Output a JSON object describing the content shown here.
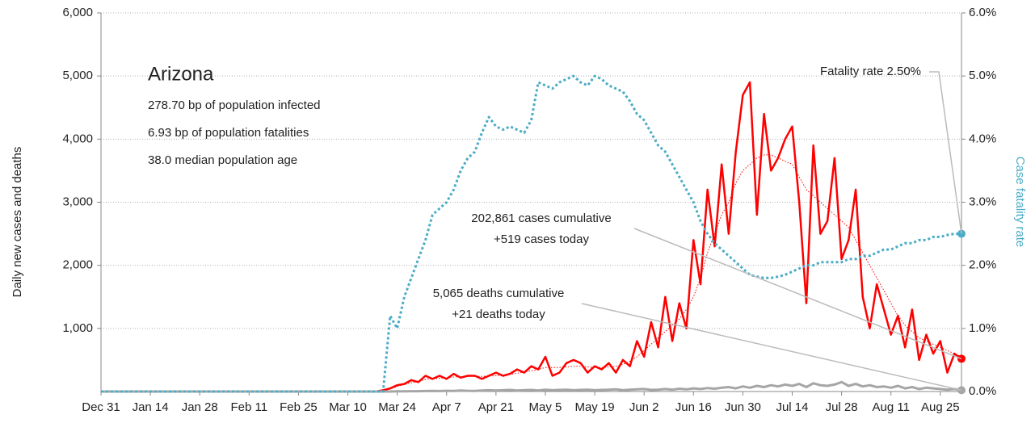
{
  "chart_data": {
    "type": "line",
    "y_label": "Daily new cases and deaths",
    "y2_label": "Case fatality rate",
    "info_title": "Arizona",
    "info_lines": [
      "278.70 bp of population infected",
      "6.93 bp of population fatalities",
      "38.0 median population age"
    ],
    "callouts": [
      [
        "Fatality rate 2.50%"
      ],
      [
        "202,861 cases cumulative",
        "+519 cases today"
      ],
      [
        "5,065 deaths cumulative",
        "+21 deaths today"
      ]
    ],
    "categories": [
      "Dec 31",
      null,
      null,
      null,
      null,
      null,
      null,
      "Jan 14",
      null,
      null,
      null,
      null,
      null,
      null,
      "Jan 28",
      null,
      null,
      null,
      null,
      null,
      null,
      "Feb 11",
      null,
      null,
      null,
      null,
      null,
      null,
      "Feb 25",
      null,
      null,
      null,
      null,
      null,
      null,
      "Mar 10",
      null,
      null,
      null,
      null,
      null,
      null,
      "Mar 24",
      null,
      null,
      null,
      null,
      null,
      null,
      "Apr 7",
      null,
      null,
      null,
      null,
      null,
      null,
      "Apr 21",
      null,
      null,
      null,
      null,
      null,
      null,
      "May 5",
      null,
      null,
      null,
      null,
      null,
      null,
      "May 19",
      null,
      null,
      null,
      null,
      null,
      null,
      "Jun 2",
      null,
      null,
      null,
      null,
      null,
      null,
      "Jun 16",
      null,
      null,
      null,
      null,
      null,
      null,
      "Jun 30",
      null,
      null,
      null,
      null,
      null,
      null,
      "Jul 14",
      null,
      null,
      null,
      null,
      null,
      null,
      "Jul 28",
      null,
      null,
      null,
      null,
      null,
      null,
      "Aug 11",
      null,
      null,
      null,
      null,
      null,
      null,
      "Aug 25",
      null,
      null,
      null
    ],
    "series": [
      {
        "color": "#ff0000",
        "style": "solid",
        "width": 2.5,
        "end_marker": true,
        "values": [
          0,
          0,
          0,
          0,
          0,
          0,
          0,
          0,
          0,
          0,
          0,
          0,
          0,
          0,
          0,
          0,
          0,
          0,
          0,
          0,
          0,
          0,
          0,
          0,
          0,
          0,
          0,
          0,
          0,
          0,
          0,
          0,
          0,
          0,
          0,
          0,
          0,
          0,
          0,
          0,
          20,
          50,
          100,
          120,
          180,
          150,
          250,
          200,
          250,
          200,
          280,
          220,
          250,
          250,
          200,
          250,
          300,
          250,
          280,
          350,
          300,
          400,
          350,
          550,
          250,
          300,
          450,
          500,
          450,
          300,
          400,
          350,
          450,
          300,
          500,
          400,
          800,
          550,
          1100,
          700,
          1500,
          800,
          1400,
          1000,
          2400,
          1700,
          3200,
          2300,
          3600,
          2500,
          3800,
          4700,
          4900,
          2800,
          4400,
          3500,
          3700,
          4000,
          4200,
          3000,
          1400,
          3900,
          2500,
          2700,
          3700,
          2100,
          2400,
          3200,
          1500,
          1000,
          1700,
          1300,
          900,
          1200,
          700,
          1300,
          500,
          900,
          600,
          800,
          300,
          600,
          519
        ]
      },
      {
        "color": "#ff0000",
        "style": "dotted",
        "width": 1,
        "end_marker": false,
        "values": [
          0,
          0,
          0,
          0,
          0,
          0,
          0,
          0,
          0,
          0,
          0,
          0,
          0,
          0,
          0,
          0,
          0,
          0,
          0,
          0,
          0,
          0,
          0,
          0,
          0,
          0,
          0,
          0,
          0,
          0,
          0,
          0,
          0,
          0,
          0,
          0,
          0,
          0,
          0,
          0,
          10,
          40,
          80,
          110,
          140,
          160,
          190,
          200,
          210,
          220,
          230,
          235,
          240,
          240,
          240,
          245,
          250,
          260,
          270,
          290,
          310,
          330,
          350,
          380,
          380,
          380,
          390,
          400,
          400,
          390,
          380,
          380,
          390,
          400,
          430,
          480,
          550,
          650,
          750,
          850,
          950,
          1050,
          1150,
          1300,
          1500,
          1800,
          2200,
          2500,
          2800,
          3000,
          3300,
          3500,
          3600,
          3700,
          3750,
          3750,
          3700,
          3650,
          3600,
          3400,
          3200,
          3100,
          3000,
          2900,
          2800,
          2700,
          2600,
          2400,
          2200,
          2000,
          1800,
          1600,
          1400,
          1200,
          1050,
          950,
          850,
          800,
          750,
          700,
          650,
          600,
          550
        ]
      },
      {
        "color": "#a6a6a6",
        "style": "solid",
        "width": 3,
        "end_marker": true,
        "values": [
          0,
          0,
          0,
          0,
          0,
          0,
          0,
          0,
          0,
          0,
          0,
          0,
          0,
          0,
          0,
          0,
          0,
          0,
          0,
          0,
          0,
          0,
          0,
          0,
          0,
          0,
          0,
          0,
          0,
          0,
          0,
          0,
          0,
          0,
          0,
          0,
          0,
          0,
          0,
          0,
          0,
          0,
          2,
          3,
          5,
          5,
          8,
          10,
          8,
          12,
          10,
          15,
          12,
          10,
          15,
          20,
          15,
          20,
          25,
          15,
          20,
          25,
          15,
          30,
          20,
          25,
          30,
          20,
          25,
          30,
          20,
          25,
          30,
          35,
          20,
          30,
          35,
          40,
          25,
          30,
          40,
          30,
          45,
          35,
          50,
          40,
          55,
          45,
          60,
          70,
          50,
          80,
          60,
          90,
          70,
          100,
          80,
          110,
          90,
          120,
          70,
          130,
          100,
          90,
          110,
          150,
          90,
          120,
          80,
          100,
          70,
          80,
          60,
          90,
          50,
          70,
          40,
          60,
          50,
          40,
          30,
          40,
          21
        ]
      },
      {
        "color": "#4bacc6",
        "style": "dotted",
        "width": 3,
        "end_marker": true,
        "axis": "y2",
        "values": [
          0,
          0,
          0,
          0,
          0,
          0,
          0,
          0,
          0,
          0,
          0,
          0,
          0,
          0,
          0,
          0,
          0,
          0,
          0,
          0,
          0,
          0,
          0,
          0,
          0,
          0,
          0,
          0,
          0,
          0,
          0,
          0,
          0,
          0,
          0,
          0,
          0,
          0,
          0,
          0,
          0,
          1.2,
          1.0,
          1.5,
          1.8,
          2.1,
          2.4,
          2.8,
          2.9,
          3.0,
          3.2,
          3.5,
          3.7,
          3.8,
          4.1,
          4.35,
          4.2,
          4.15,
          4.2,
          4.15,
          4.1,
          4.3,
          4.9,
          4.85,
          4.8,
          4.9,
          4.95,
          5.0,
          4.9,
          4.85,
          5.0,
          4.95,
          4.85,
          4.8,
          4.75,
          4.6,
          4.4,
          4.3,
          4.1,
          3.9,
          3.8,
          3.6,
          3.4,
          3.2,
          3.0,
          2.7,
          2.5,
          2.35,
          2.25,
          2.15,
          2.05,
          1.95,
          1.85,
          1.82,
          1.8,
          1.8,
          1.82,
          1.85,
          1.9,
          1.95,
          2.0,
          2.0,
          2.05,
          2.05,
          2.05,
          2.05,
          2.1,
          2.1,
          2.15,
          2.15,
          2.2,
          2.25,
          2.25,
          2.3,
          2.35,
          2.35,
          2.4,
          2.4,
          2.45,
          2.45,
          2.48,
          2.5,
          2.5
        ]
      }
    ],
    "ylim": [
      0,
      6000
    ],
    "yticks": [
      {
        "value": 1000,
        "label": "1,000"
      },
      {
        "value": 2000,
        "label": "2,000"
      },
      {
        "value": 3000,
        "label": "3,000"
      },
      {
        "value": 4000,
        "label": "4,000"
      },
      {
        "value": 5000,
        "label": "5,000"
      },
      {
        "value": 6000,
        "label": "6,000"
      }
    ],
    "y2lim": [
      0,
      6
    ],
    "y2ticks": [
      {
        "value": 0,
        "label": "0.0%"
      },
      {
        "value": 1,
        "label": "1.0%"
      },
      {
        "value": 2,
        "label": "2.0%"
      },
      {
        "value": 3,
        "label": "3.0%"
      },
      {
        "value": 4,
        "label": "4.0%"
      },
      {
        "value": 5,
        "label": "5.0%"
      },
      {
        "value": 6,
        "label": "6.0%"
      }
    ],
    "y2_color": "#4bacc6",
    "grid": true
  }
}
